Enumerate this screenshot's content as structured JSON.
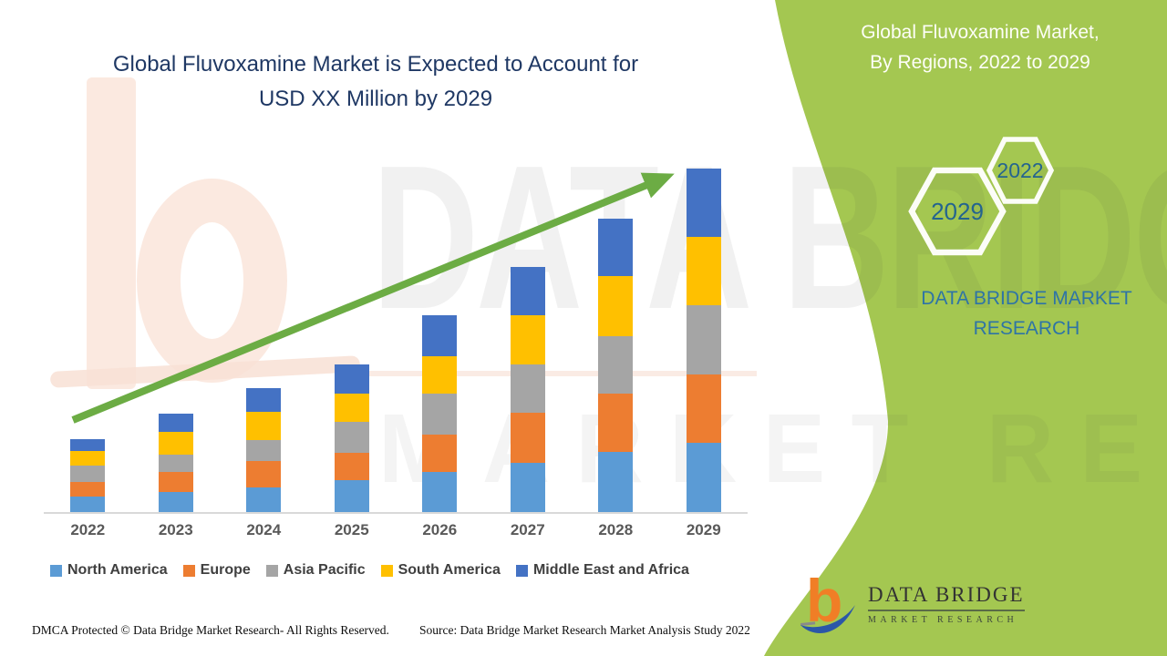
{
  "chart": {
    "title_line1": "Global Fluvoxamine Market is Expected to Account for",
    "title_line2": "USD XX Million by 2029"
  },
  "chart_data": {
    "type": "bar",
    "stacked": true,
    "title": "Global Fluvoxamine Market is Expected to Account for USD XX Million by 2029",
    "categories": [
      "2022",
      "2023",
      "2024",
      "2025",
      "2026",
      "2027",
      "2028",
      "2029"
    ],
    "series": [
      {
        "name": "North America",
        "color": "#5B9BD5",
        "values": [
          17,
          22,
          27,
          35,
          44,
          54,
          66,
          76
        ]
      },
      {
        "name": "Europe",
        "color": "#ED7D31",
        "values": [
          16,
          22,
          29,
          30,
          41,
          55,
          64,
          75
        ]
      },
      {
        "name": "Asia Pacific",
        "color": "#A5A5A5",
        "values": [
          18,
          19,
          23,
          34,
          45,
          53,
          63,
          76
        ]
      },
      {
        "name": "South America",
        "color": "#FFC000",
        "values": [
          16,
          25,
          31,
          31,
          41,
          54,
          66,
          75
        ]
      },
      {
        "name": "Middle East and Africa",
        "color": "#4472C4",
        "values": [
          13,
          20,
          26,
          32,
          45,
          53,
          63,
          75
        ]
      }
    ],
    "totals": [
      80,
      108,
      136,
      162,
      216,
      269,
      322,
      377
    ],
    "value_axis": "relative units; actual values hidden (USD XX Million)",
    "legend_position": "bottom",
    "grid": false,
    "trend_arrow": {
      "color": "#6CAC44",
      "from_category": "2022",
      "to_category": "2029"
    }
  },
  "banner": {
    "bg_color": "#A4C751",
    "title_line1": "Global Fluvoxamine Market,",
    "title_line2": "By Regions, 2022 to 2029",
    "hex_year_small": "2022",
    "hex_year_large": "2029",
    "brand_line1": "DATA BRIDGE MARKET",
    "brand_line2": "RESEARCH"
  },
  "logo": {
    "title": "DATA BRIDGE",
    "subtitle": "MARKET RESEARCH"
  },
  "footer": {
    "dmca": "DMCA Protected © Data Bridge Market Research- All Rights Reserved.",
    "source": "Source: Data Bridge Market Research Market Analysis Study 2022"
  },
  "watermark": {
    "row1": "DATA BRIDGE",
    "row2": "MARKET RESEARCH"
  }
}
